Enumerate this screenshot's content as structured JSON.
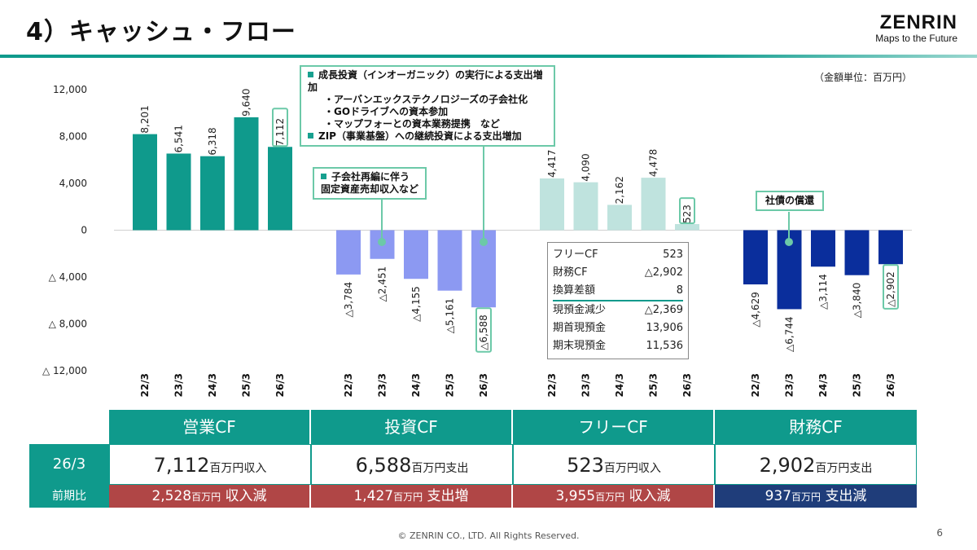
{
  "header": {
    "title": "4）キャッシュ・フロー",
    "logo_name": "ZENRIN",
    "logo_tagline": "Maps to the Future"
  },
  "unit_note": "（金額単位：百万円）",
  "chart_data": {
    "type": "bar",
    "title": "",
    "xlabel": "",
    "ylabel": "",
    "ylim": [
      -12000,
      12000
    ],
    "y_ticks": [
      {
        "value": 12000,
        "label": "12,000"
      },
      {
        "value": 8000,
        "label": "8,000"
      },
      {
        "value": 4000,
        "label": "4,000"
      },
      {
        "value": 0,
        "label": "0"
      },
      {
        "value": -4000,
        "label": "△ 4,000"
      },
      {
        "value": -8000,
        "label": "△ 8,000"
      },
      {
        "value": -12000,
        "label": "△ 12,000"
      }
    ],
    "categories": [
      "22/3",
      "23/3",
      "24/3",
      "25/3",
      "26/3"
    ],
    "grid": false,
    "series": [
      {
        "color": "#0f9a8c",
        "values": [
          8201,
          6541,
          6318,
          9640,
          7112
        ],
        "labels": [
          "8,201",
          "6,541",
          "6,318",
          "9,640",
          "7,112"
        ]
      },
      {
        "color": "#8c99f2",
        "values": [
          -3784,
          -2451,
          -4155,
          -5161,
          -6588
        ],
        "labels": [
          "△3,784",
          "△2,451",
          "△4,155",
          "△5,161",
          "△6,588"
        ]
      },
      {
        "color": "#bfe3de",
        "values": [
          4417,
          4090,
          2162,
          4478,
          523
        ],
        "labels": [
          "4,417",
          "4,090",
          "2,162",
          "4,478",
          "523"
        ]
      },
      {
        "color": "#0a2e9c",
        "values": [
          -4629,
          -6744,
          -3114,
          -3840,
          -2902
        ],
        "labels": [
          "△4,629",
          "△6,744",
          "△3,114",
          "△3,840",
          "△2,902"
        ]
      }
    ]
  },
  "callouts": {
    "invest_main": {
      "line1": "成長投資（インオーガニック）の実行による支出増加",
      "sub1": "アーバンエックステクノロジーズの子会社化",
      "sub2": "GOドライブへの資本参加",
      "sub3": "マップフォーとの資本業務提携　など",
      "line2": "ZIP（事業基盤）への継続投資による支出増加"
    },
    "invest_small": {
      "line1": "子会社再編に伴う",
      "line2": "固定資産売却収入など"
    },
    "finance": {
      "line1": "社債の償還"
    }
  },
  "free_cf_box": {
    "rows": [
      {
        "label": "フリーCF",
        "value": "523"
      },
      {
        "label": "財務CF",
        "value": "△2,902"
      },
      {
        "label": "換算差額",
        "value": "8"
      },
      {
        "label": "現預金減少",
        "value": "△2,369"
      },
      {
        "label": "期首現預金",
        "value": "13,906"
      },
      {
        "label": "期末現預金",
        "value": "11,536"
      }
    ]
  },
  "summary_table": {
    "headers": [
      "営業CF",
      "投資CF",
      "フリーCF",
      "財務CF"
    ],
    "row1_label": "26/3",
    "row1": [
      {
        "num": "7,112",
        "unit": "百万円収入"
      },
      {
        "num": "6,588",
        "unit": "百万円支出"
      },
      {
        "num": "523",
        "unit": "百万円収入"
      },
      {
        "num": "2,902",
        "unit": "百万円支出"
      }
    ],
    "row2_label": "前期比",
    "row2": [
      {
        "num": "2,528",
        "unit": "百万円",
        "word": "収入減",
        "color": "#b04646"
      },
      {
        "num": "1,427",
        "unit": "百万円",
        "word": "支出増",
        "color": "#b04646"
      },
      {
        "num": "3,955",
        "unit": "百万円",
        "word": "収入減",
        "color": "#b04646"
      },
      {
        "num": "937",
        "unit": "百万円",
        "word": "支出減",
        "color": "#1f3d7a"
      }
    ]
  },
  "footer": {
    "copyright": "© ZENRIN CO., LTD. All Rights Reserved.",
    "page": "6"
  }
}
